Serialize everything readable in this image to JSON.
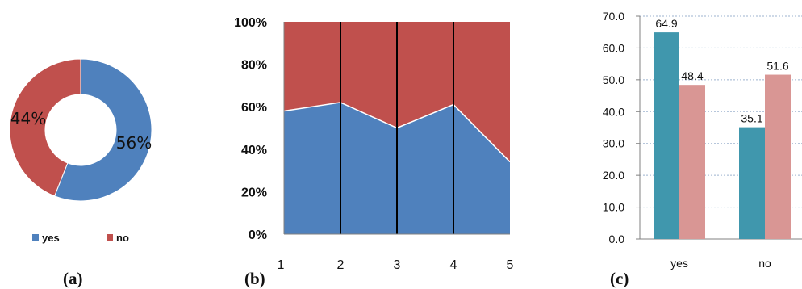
{
  "colors": {
    "yes_blue": "#4f81bd",
    "no_red": "#c0504d",
    "teal": "#4097ad",
    "pink": "#d99694",
    "axis": "#808080",
    "dark_line": "#000000"
  },
  "chart_data": [
    {
      "type": "pie",
      "variant": "donut",
      "caption": "(a)",
      "slices": [
        {
          "name": "yes",
          "value": 56,
          "label": "56%"
        },
        {
          "name": "no",
          "value": 44,
          "label": "44%"
        }
      ],
      "legend": {
        "position": "bottom",
        "entries": [
          "yes",
          "no"
        ]
      }
    },
    {
      "type": "area",
      "stacked": "100%",
      "caption": "(b)",
      "x": [
        1,
        2,
        3,
        4,
        5
      ],
      "x_ticks": [
        "1",
        "2",
        "3",
        "4",
        "5"
      ],
      "y_ticks": [
        "0%",
        "20%",
        "40%",
        "60%",
        "80%",
        "100%"
      ],
      "ylim": [
        0,
        100
      ],
      "series": [
        {
          "values": [
            58,
            62,
            50,
            61,
            34
          ]
        },
        {
          "values": [
            42,
            38,
            50,
            39,
            66
          ]
        }
      ],
      "vertical_lines_at": [
        2,
        3,
        4
      ]
    },
    {
      "type": "bar",
      "caption": "(c)",
      "categories": [
        "yes",
        "no"
      ],
      "series": [
        {
          "values": [
            64.9,
            35.1
          ],
          "labels": [
            "64.9",
            "35.1"
          ]
        },
        {
          "values": [
            48.4,
            51.6
          ],
          "labels": [
            "48.4",
            "51.6"
          ]
        }
      ],
      "y_ticks": [
        "0.0",
        "10.0",
        "20.0",
        "30.0",
        "40.0",
        "50.0",
        "60.0",
        "70.0"
      ],
      "ylim": [
        0,
        70
      ],
      "grid": true
    }
  ]
}
